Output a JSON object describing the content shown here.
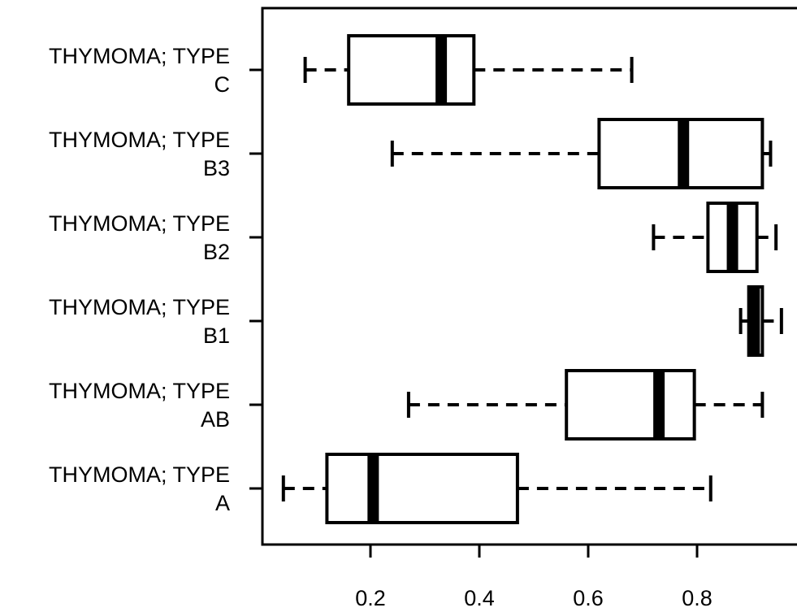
{
  "chart_data": {
    "type": "boxplot",
    "orientation": "horizontal",
    "title": "",
    "xlabel": "",
    "ylabel": "",
    "xlim": [
      0.0,
      0.99
    ],
    "x_ticks": [
      0.2,
      0.4,
      0.6,
      0.8
    ],
    "x_tick_labels": [
      "0.2",
      "0.4",
      "0.6",
      "0.8"
    ],
    "grid": false,
    "categories": [
      {
        "label_line1": "THYMOMA; TYPE",
        "label_line2": "A"
      },
      {
        "label_line1": "THYMOMA; TYPE",
        "label_line2": "AB"
      },
      {
        "label_line1": "THYMOMA; TYPE",
        "label_line2": "B1"
      },
      {
        "label_line1": "THYMOMA; TYPE",
        "label_line2": "B2"
      },
      {
        "label_line1": "THYMOMA; TYPE",
        "label_line2": "B3"
      },
      {
        "label_line1": "THYMOMA; TYPE",
        "label_line2": "C"
      }
    ],
    "boxes": [
      {
        "whisker_low": 0.04,
        "q1": 0.12,
        "median": 0.205,
        "q3": 0.47,
        "whisker_high": 0.825
      },
      {
        "whisker_low": 0.27,
        "q1": 0.56,
        "median": 0.73,
        "q3": 0.795,
        "whisker_high": 0.92
      },
      {
        "whisker_low": 0.88,
        "q1": 0.895,
        "median": 0.905,
        "q3": 0.92,
        "whisker_high": 0.955
      },
      {
        "whisker_low": 0.72,
        "q1": 0.82,
        "median": 0.865,
        "q3": 0.91,
        "whisker_high": 0.945
      },
      {
        "whisker_low": 0.24,
        "q1": 0.62,
        "median": 0.775,
        "q3": 0.92,
        "whisker_high": 0.935
      },
      {
        "whisker_low": 0.08,
        "q1": 0.16,
        "median": 0.33,
        "q3": 0.39,
        "whisker_high": 0.68
      }
    ],
    "colors": {
      "stroke": "#000000",
      "box_fill": "#ffffff"
    }
  }
}
